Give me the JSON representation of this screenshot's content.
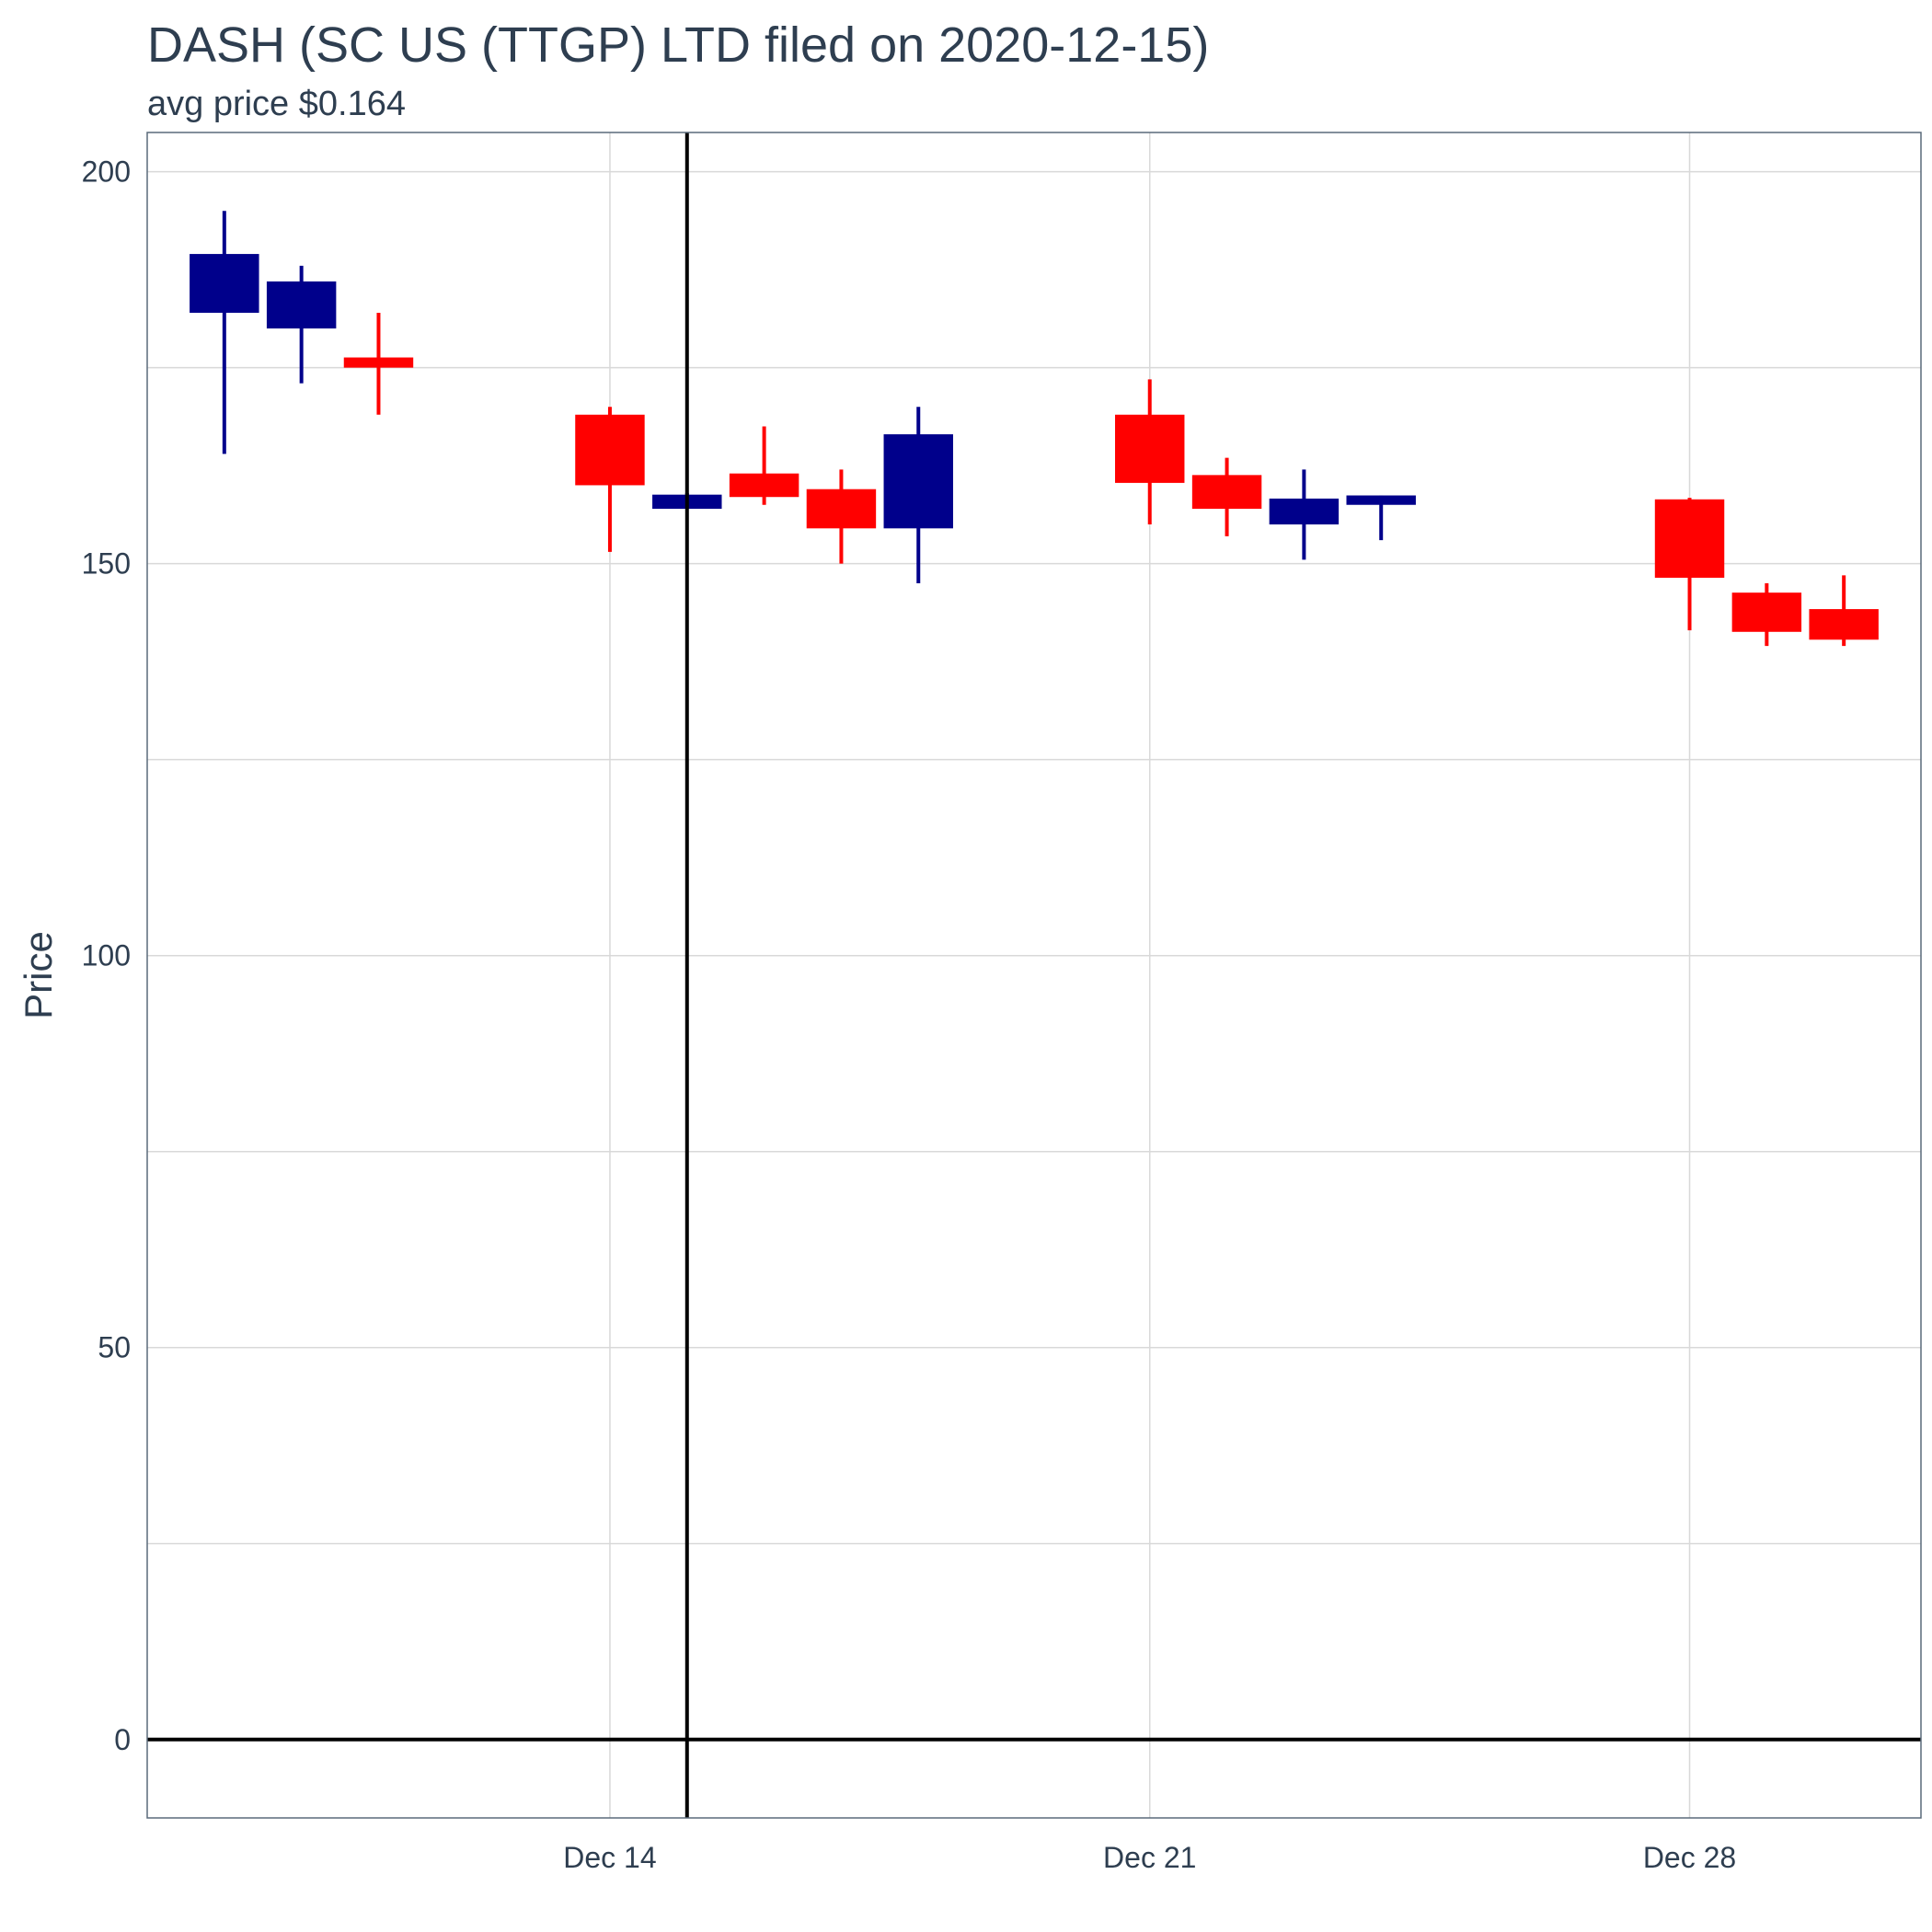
{
  "chart_data": {
    "type": "candlestick",
    "title": "DASH (SC US (TTGP)  LTD filed on 2020-12-15)",
    "subtitle": "avg price $0.164",
    "ylabel": "Price",
    "xlabel": "",
    "ylim": [
      -10,
      205
    ],
    "xlim": [
      "2020-12-08",
      "2020-12-31"
    ],
    "y_ticks": [
      0,
      50,
      100,
      150,
      200
    ],
    "x_ticks": [
      {
        "date": "2020-12-14",
        "label": "Dec 14"
      },
      {
        "date": "2020-12-21",
        "label": "Dec 21"
      },
      {
        "date": "2020-12-28",
        "label": "Dec 28"
      }
    ],
    "grid": true,
    "filing_date": "2020-12-15",
    "colors": {
      "up": "#00008b",
      "down": "#ff0000",
      "reference_line": "#000000",
      "grid": "#d9d9d9",
      "text": "#2e3e50",
      "frame": "#5a6a7a"
    },
    "candles": [
      {
        "date": "2020-12-09",
        "open": 182,
        "high": 195,
        "low": 164,
        "close": 189.5,
        "direction": "up"
      },
      {
        "date": "2020-12-10",
        "open": 180,
        "high": 188,
        "low": 173,
        "close": 186,
        "direction": "up"
      },
      {
        "date": "2020-12-11",
        "open": 175,
        "high": 182,
        "low": 169,
        "close": 176.3,
        "direction": "down"
      },
      {
        "date": "2020-12-14",
        "open": 169,
        "high": 170,
        "low": 151.5,
        "close": 160,
        "direction": "down"
      },
      {
        "date": "2020-12-15",
        "open": 157,
        "high": 159,
        "low": 157,
        "close": 158.8,
        "direction": "up"
      },
      {
        "date": "2020-12-16",
        "open": 161.5,
        "high": 167.5,
        "low": 157.5,
        "close": 158.5,
        "direction": "down"
      },
      {
        "date": "2020-12-17",
        "open": 159.5,
        "high": 162,
        "low": 150,
        "close": 154.5,
        "direction": "down"
      },
      {
        "date": "2020-12-18",
        "open": 154.5,
        "high": 170,
        "low": 147.5,
        "close": 166.5,
        "direction": "up"
      },
      {
        "date": "2020-12-21",
        "open": 169,
        "high": 173.5,
        "low": 155,
        "close": 160.3,
        "direction": "down"
      },
      {
        "date": "2020-12-22",
        "open": 161.3,
        "high": 163.5,
        "low": 153.5,
        "close": 157,
        "direction": "down"
      },
      {
        "date": "2020-12-23",
        "open": 155,
        "high": 162,
        "low": 150.5,
        "close": 158.3,
        "direction": "up"
      },
      {
        "date": "2020-12-24",
        "open": 157.5,
        "high": 158.7,
        "low": 153,
        "close": 158.7,
        "direction": "up"
      },
      {
        "date": "2020-12-28",
        "open": 158.2,
        "high": 158.4,
        "low": 141.5,
        "close": 148.2,
        "direction": "down"
      },
      {
        "date": "2020-12-29",
        "open": 146.3,
        "high": 147.5,
        "low": 139.5,
        "close": 141.3,
        "direction": "down"
      },
      {
        "date": "2020-12-30",
        "open": 144.2,
        "high": 148.5,
        "low": 139.5,
        "close": 140.3,
        "direction": "down"
      }
    ]
  }
}
